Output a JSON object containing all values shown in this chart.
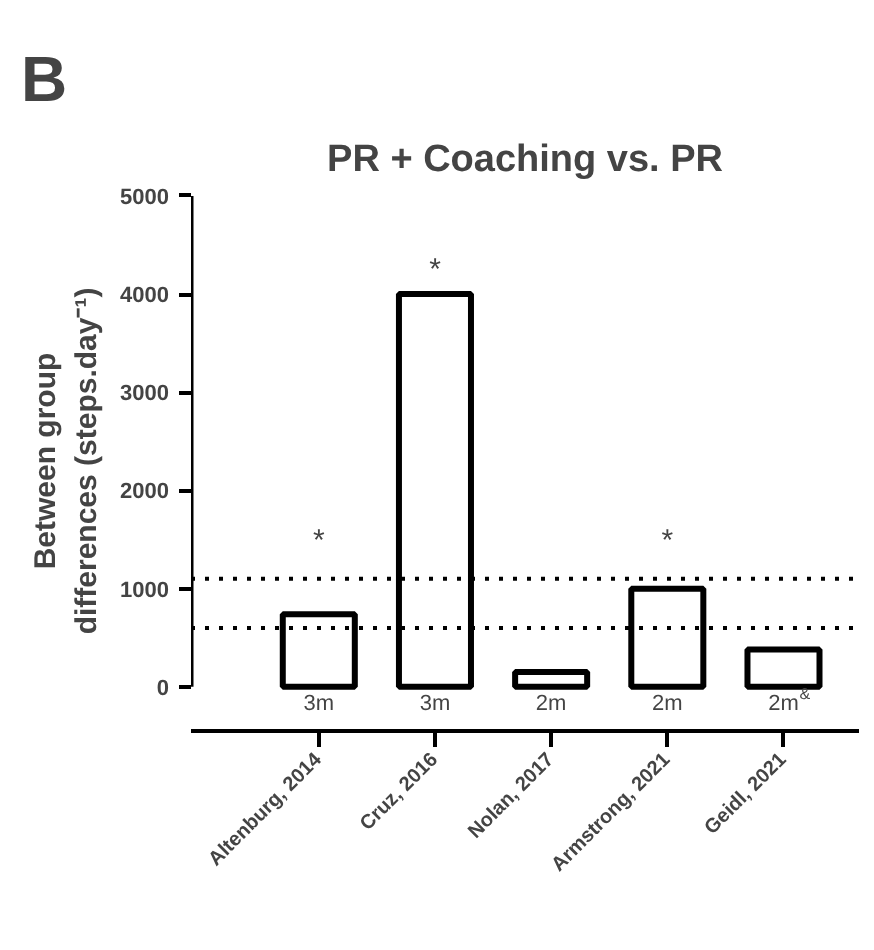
{
  "chart_data": {
    "type": "bar",
    "title": "PR + Coaching vs. PR",
    "ylabel": "Between group\ndifferences (steps.day⁻¹)",
    "categories": [
      "Altenburg, 2014",
      "Cruz, 2016",
      "Nolan, 2017",
      "Armstrong, 2021",
      "Geidl, 2021"
    ],
    "values": [
      740,
      4000,
      150,
      1000,
      380
    ],
    "color": "#ffffff",
    "ylim": [
      0,
      5000
    ],
    "yticks": [
      0,
      1000,
      2000,
      3000,
      4000,
      5000
    ],
    "grid": false,
    "ref_lines": [
      {
        "axis": "y",
        "value": 1100,
        "line_style": "dotted",
        "color": "#000000"
      },
      {
        "axis": "y",
        "value": 600,
        "line_style": "dotted",
        "color": "#000000"
      }
    ],
    "annotations": [
      "B",
      "*",
      "*",
      "*",
      "3m",
      "3m",
      "2m",
      "2m",
      "2m$^{&}$"
    ]
  }
}
